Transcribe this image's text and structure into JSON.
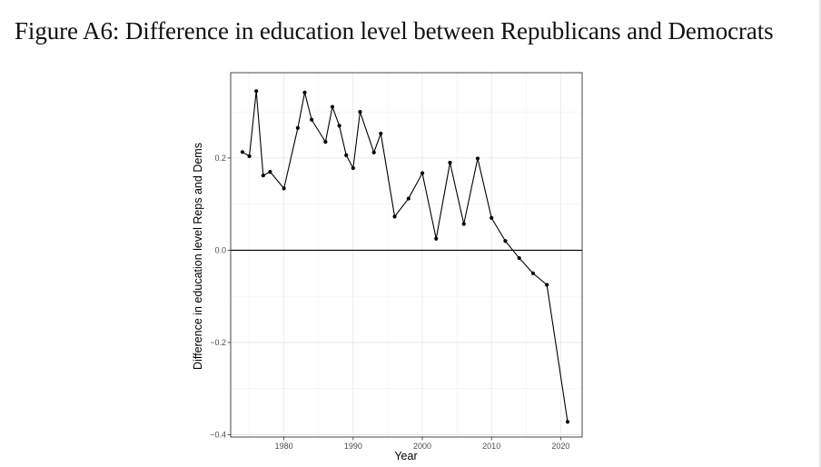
{
  "figure": {
    "title": "Figure A6: Difference in education level between Republicans and Democrats"
  },
  "chart_data": {
    "type": "line",
    "title": "",
    "xlabel": "Year",
    "ylabel": "Difference in education level Reps and Dems",
    "xlim": [
      1972.3,
      2023.1
    ],
    "ylim": [
      -0.405,
      0.385
    ],
    "x_ticks": [
      1980,
      1990,
      2000,
      2010,
      2020
    ],
    "x_tick_labels": [
      "1980",
      "1990",
      "2000",
      "2010",
      "2020"
    ],
    "y_ticks": [
      -0.4,
      -0.2,
      0.0,
      0.2
    ],
    "y_tick_labels": [
      "−0.4",
      "−0.2",
      "0.0",
      "0.2"
    ],
    "grid": true,
    "reference_line_y": 0,
    "series": [
      {
        "marker": "point",
        "color": "#000000",
        "x": [
          1974,
          1975,
          1976,
          1977,
          1978,
          1980,
          1982,
          1983,
          1984,
          1986,
          1987,
          1988,
          1989,
          1990,
          1991,
          1993,
          1994,
          1996,
          1998,
          2000,
          2002,
          2004,
          2006,
          2008,
          2010,
          2012,
          2014,
          2016,
          2018,
          2021
        ],
        "y": [
          0.213,
          0.204,
          0.345,
          0.162,
          0.17,
          0.134,
          0.265,
          0.342,
          0.283,
          0.235,
          0.311,
          0.27,
          0.206,
          0.178,
          0.3,
          0.212,
          0.253,
          0.073,
          0.112,
          0.167,
          0.025,
          0.19,
          0.057,
          0.199,
          0.07,
          0.02,
          -0.017,
          -0.05,
          -0.075,
          -0.372
        ]
      }
    ]
  }
}
